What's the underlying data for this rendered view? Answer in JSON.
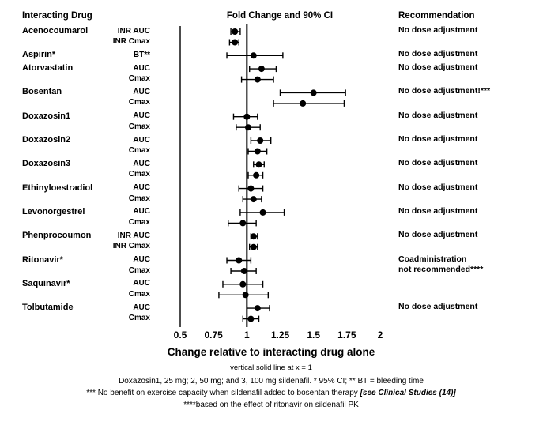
{
  "headers": {
    "left": "Interacting Drug",
    "center": "Fold Change and 90% CI",
    "right": "Recommendation"
  },
  "axis": {
    "title": "Change relative to interacting drug alone",
    "note": "vertical solid line at x = 1",
    "ticks": [
      0.5,
      0.75,
      1,
      1.25,
      1.5,
      1.75,
      2
    ],
    "tick_labels": [
      "0.5",
      "0.75",
      "1",
      "1.25",
      "1.5",
      "1.75",
      "2"
    ]
  },
  "footnotes": {
    "line1": "Doxazosin1, 25 mg; 2, 50 mg; and 3, 100 mg sildenafil. * 95% CI; ** BT = bleeding time",
    "line2_text": "*** No benefit on exercise capacity when sildenafil added to bosentan therapy ",
    "line2_italic": "[see Clinical Studies (14)]",
    "line3": "****based on the effect of ritonavir on sildenafil PK"
  },
  "colors": {
    "ink": "#000000",
    "background": "#ffffff"
  },
  "chart_data": {
    "type": "scatter",
    "subtype": "forest-plot-with-90pct-CI",
    "title": "Fold Change and 90% CI",
    "xlabel": "Change relative to interacting drug alone",
    "ylabel": "",
    "xlim": [
      0.5,
      2
    ],
    "ref_line_x": 1,
    "grid": false,
    "rows": [
      {
        "drug": "Acenocoumarol",
        "param": "INR AUC",
        "est": 0.91,
        "lo": 0.88,
        "hi": 0.95,
        "rec": "No dose adjustment"
      },
      {
        "drug": "",
        "param": "INR Cmax",
        "est": 0.91,
        "lo": 0.87,
        "hi": 0.94,
        "rec": ""
      },
      {
        "drug": "Aspirin*",
        "param": "BT**",
        "est": 1.05,
        "lo": 0.85,
        "hi": 1.27,
        "rec": "No dose adjustment"
      },
      {
        "drug": "Atorvastatin",
        "param": "AUC",
        "est": 1.11,
        "lo": 1.02,
        "hi": 1.22,
        "rec": "No dose adjustment"
      },
      {
        "drug": "",
        "param": "Cmax",
        "est": 1.08,
        "lo": 0.96,
        "hi": 1.2,
        "rec": ""
      },
      {
        "drug": "Bosentan",
        "param": "AUC",
        "est": 1.5,
        "lo": 1.25,
        "hi": 1.74,
        "rec": "No dose adjustment!***"
      },
      {
        "drug": "",
        "param": "Cmax",
        "est": 1.42,
        "lo": 1.2,
        "hi": 1.73,
        "rec": ""
      },
      {
        "drug": "Doxazosin1",
        "param": "AUC",
        "est": 1.0,
        "lo": 0.9,
        "hi": 1.08,
        "rec": "No dose adjustment"
      },
      {
        "drug": "",
        "param": "Cmax",
        "est": 1.01,
        "lo": 0.92,
        "hi": 1.1,
        "rec": ""
      },
      {
        "drug": "Doxazosin2",
        "param": "AUC",
        "est": 1.1,
        "lo": 1.03,
        "hi": 1.18,
        "rec": "No dose adjustment"
      },
      {
        "drug": "",
        "param": "Cmax",
        "est": 1.08,
        "lo": 1.01,
        "hi": 1.15,
        "rec": ""
      },
      {
        "drug": "Doxazosin3",
        "param": "AUC",
        "est": 1.09,
        "lo": 1.05,
        "hi": 1.13,
        "rec": "No dose adjustment"
      },
      {
        "drug": "",
        "param": "Cmax",
        "est": 1.07,
        "lo": 1.01,
        "hi": 1.12,
        "rec": ""
      },
      {
        "drug": "Ethinyloestradiol",
        "param": "AUC",
        "est": 1.03,
        "lo": 0.94,
        "hi": 1.12,
        "rec": "No dose adjustment"
      },
      {
        "drug": "",
        "param": "Cmax",
        "est": 1.05,
        "lo": 0.97,
        "hi": 1.11,
        "rec": ""
      },
      {
        "drug": "Levonorgestrel",
        "param": "AUC",
        "est": 1.12,
        "lo": 0.95,
        "hi": 1.28,
        "rec": "No dose adjustment"
      },
      {
        "drug": "",
        "param": "Cmax",
        "est": 0.97,
        "lo": 0.86,
        "hi": 1.07,
        "rec": ""
      },
      {
        "drug": "Phenprocoumon",
        "param": "INR AUC",
        "est": 1.05,
        "lo": 1.03,
        "hi": 1.08,
        "rec": "No dose adjustment"
      },
      {
        "drug": "",
        "param": "INR Cmax",
        "est": 1.05,
        "lo": 1.02,
        "hi": 1.08,
        "rec": ""
      },
      {
        "drug": "Ritonavir*",
        "param": "AUC",
        "est": 0.94,
        "lo": 0.85,
        "hi": 1.03,
        "rec": "Coadministration"
      },
      {
        "drug": "",
        "param": "Cmax",
        "est": 0.98,
        "lo": 0.88,
        "hi": 1.07,
        "rec": "not recommended****"
      },
      {
        "drug": "Saquinavir*",
        "param": "AUC",
        "est": 0.97,
        "lo": 0.82,
        "hi": 1.12,
        "rec": ""
      },
      {
        "drug": "",
        "param": "Cmax",
        "est": 0.99,
        "lo": 0.79,
        "hi": 1.16,
        "rec": ""
      },
      {
        "drug": "Tolbutamide",
        "param": "AUC",
        "est": 1.08,
        "lo": 1.0,
        "hi": 1.17,
        "rec": "No dose adjustment"
      },
      {
        "drug": "",
        "param": "Cmax",
        "est": 1.03,
        "lo": 0.97,
        "hi": 1.09,
        "rec": ""
      }
    ]
  }
}
